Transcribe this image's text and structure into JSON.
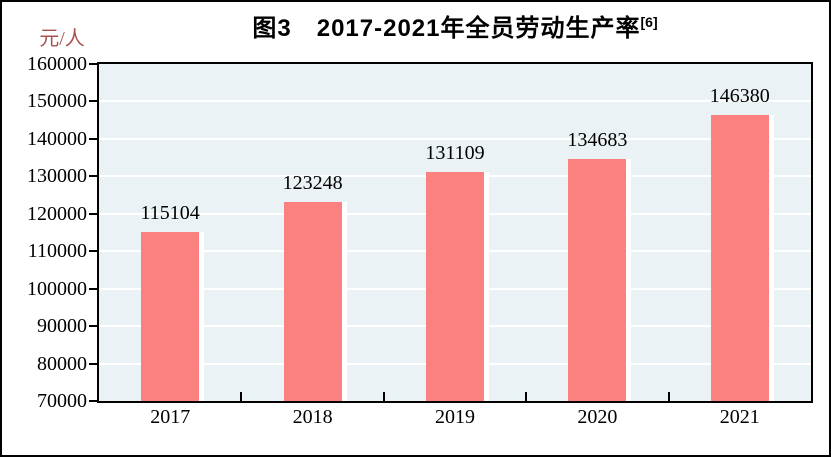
{
  "title": {
    "text": "图3　2017-2021年全员劳动生产率",
    "superscript": "[6]"
  },
  "unit_label": "元/人",
  "chart_data": {
    "type": "bar",
    "title": "图3 2017-2021年全员劳动生产率[6]",
    "categories": [
      "2017",
      "2018",
      "2019",
      "2020",
      "2021"
    ],
    "values": [
      115104,
      123248,
      131109,
      134683,
      146380
    ],
    "data_labels": [
      "115104",
      "123248",
      "131109",
      "134683",
      "146380"
    ],
    "xlabel": "",
    "ylabel": "元/人",
    "ylim": [
      70000,
      160000
    ],
    "ytick_step": 10000,
    "ytick_labels": [
      "70000",
      "80000",
      "90000",
      "100000",
      "110000",
      "120000",
      "130000",
      "140000",
      "150000",
      "160000"
    ],
    "grid": true,
    "legend": "none",
    "colors": {
      "bar_fill": "#fb8080",
      "plot_background": "#eaf2f6",
      "gridline": "#ffffff",
      "axis": "#000000",
      "title_text": "#000000",
      "tick_text": "#000000",
      "unit_text": "#a85050"
    }
  }
}
